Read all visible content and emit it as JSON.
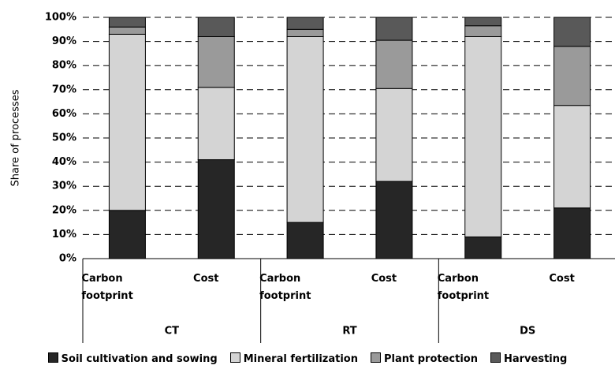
{
  "chart_data": {
    "type": "stacked-bar",
    "y_label": "Share of processes",
    "groups": [
      "CT",
      "RT",
      "DS"
    ],
    "categories": [
      "Carbon footprint",
      "Cost",
      "Carbon footprint",
      "Cost",
      "Carbon footprint",
      "Cost"
    ],
    "series": [
      {
        "name": "Soil cultivation and sowing",
        "color": "#262626",
        "values": [
          20,
          41,
          15,
          32,
          9,
          21
        ]
      },
      {
        "name": "Mineral fertilization",
        "color": "#d4d4d4",
        "values": [
          73,
          30,
          77,
          38.5,
          83,
          42.5
        ]
      },
      {
        "name": "Plant protection",
        "color": "#9a9a9a",
        "values": [
          3,
          21,
          3,
          20,
          4.5,
          24.5
        ]
      },
      {
        "name": "Harvesting",
        "color": "#595959",
        "values": [
          4,
          8,
          5,
          9.5,
          3.5,
          12
        ]
      }
    ],
    "ylim": [
      0,
      100
    ],
    "yticks": [
      {
        "value": 0,
        "label": "0%"
      },
      {
        "value": 10,
        "label": "10%"
      },
      {
        "value": 20,
        "label": "20%"
      },
      {
        "value": 30,
        "label": "30%"
      },
      {
        "value": 40,
        "label": "40%"
      },
      {
        "value": 50,
        "label": "50%"
      },
      {
        "value": 60,
        "label": "60%"
      },
      {
        "value": 70,
        "label": "70%"
      },
      {
        "value": 80,
        "label": "80%"
      },
      {
        "value": 90,
        "label": "90%"
      },
      {
        "value": 100,
        "label": "100%"
      }
    ],
    "grid": true
  }
}
